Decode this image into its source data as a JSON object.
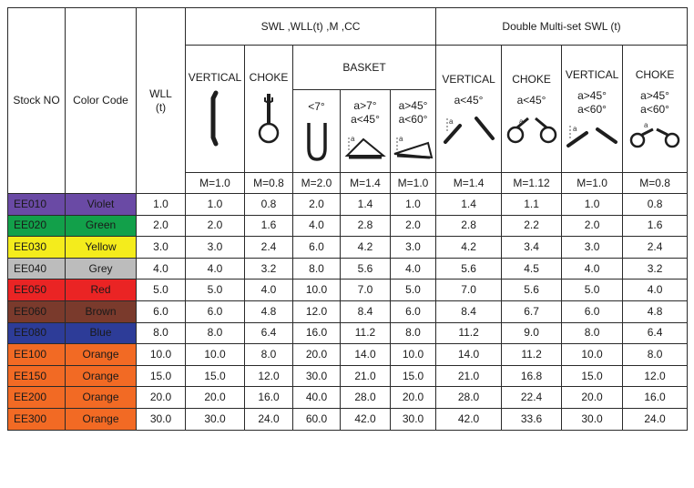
{
  "headers": {
    "stock_no": "Stock NO",
    "color_code": "Color Code",
    "wll": "WLL\n(t)",
    "swl_group": "SWL ,WLL(t) ,M ,CC",
    "double_group": "Double Multi-set SWL (t)",
    "basket": "BASKET",
    "vertical": "VERTICAL",
    "choke": "CHOKE",
    "angle_lt7": "<7°",
    "angle_7_45": "a>7°\na<45°",
    "angle_45_60": "a>45°\na<60°",
    "angle_lt45": "a<45°"
  },
  "m_factors": [
    "M=1.0",
    "M=0.8",
    "M=2.0",
    "M=1.4",
    "M=1.0",
    "M=1.4",
    "M=1.12",
    "M=1.0",
    "M=0.8"
  ],
  "rows": [
    {
      "stock": "EE010",
      "color": "Violet",
      "hex": "#6a4aa5",
      "text_color": "#1a1a1a",
      "values": [
        "1.0",
        "1.0",
        "0.8",
        "2.0",
        "1.4",
        "1.0",
        "1.4",
        "1.1",
        "1.0",
        "0.8"
      ]
    },
    {
      "stock": "EE020",
      "color": "Green",
      "hex": "#12a04a",
      "text_color": "#1a1a1a",
      "values": [
        "2.0",
        "2.0",
        "1.6",
        "4.0",
        "2.8",
        "2.0",
        "2.8",
        "2.2",
        "2.0",
        "1.6"
      ]
    },
    {
      "stock": "EE030",
      "color": "Yellow",
      "hex": "#f4ec1c",
      "text_color": "#1a1a1a",
      "values": [
        "3.0",
        "3.0",
        "2.4",
        "6.0",
        "4.2",
        "3.0",
        "4.2",
        "3.4",
        "3.0",
        "2.4"
      ]
    },
    {
      "stock": "EE040",
      "color": "Grey",
      "hex": "#bcbcbc",
      "text_color": "#1a1a1a",
      "values": [
        "4.0",
        "4.0",
        "3.2",
        "8.0",
        "5.6",
        "4.0",
        "5.6",
        "4.5",
        "4.0",
        "3.2"
      ]
    },
    {
      "stock": "EE050",
      "color": "Red",
      "hex": "#ea2424",
      "text_color": "#1a1a1a",
      "values": [
        "5.0",
        "5.0",
        "4.0",
        "10.0",
        "7.0",
        "5.0",
        "7.0",
        "5.6",
        "5.0",
        "4.0"
      ]
    },
    {
      "stock": "EE060",
      "color": "Brown",
      "hex": "#7a3a2c",
      "text_color": "#1a1a1a",
      "values": [
        "6.0",
        "6.0",
        "4.8",
        "12.0",
        "8.4",
        "6.0",
        "8.4",
        "6.7",
        "6.0",
        "4.8"
      ]
    },
    {
      "stock": "EE080",
      "color": "Blue",
      "hex": "#2d3c98",
      "text_color": "#1a1a1a",
      "values": [
        "8.0",
        "8.0",
        "6.4",
        "16.0",
        "11.2",
        "8.0",
        "11.2",
        "9.0",
        "8.0",
        "6.4"
      ]
    },
    {
      "stock": "EE100",
      "color": "Orange",
      "hex": "#f26a24",
      "text_color": "#1a1a1a",
      "values": [
        "10.0",
        "10.0",
        "8.0",
        "20.0",
        "14.0",
        "10.0",
        "14.0",
        "11.2",
        "10.0",
        "8.0"
      ]
    },
    {
      "stock": "EE150",
      "color": "Orange",
      "hex": "#f26a24",
      "text_color": "#1a1a1a",
      "values": [
        "15.0",
        "15.0",
        "12.0",
        "30.0",
        "21.0",
        "15.0",
        "21.0",
        "16.8",
        "15.0",
        "12.0"
      ]
    },
    {
      "stock": "EE200",
      "color": "Orange",
      "hex": "#f26a24",
      "text_color": "#1a1a1a",
      "values": [
        "20.0",
        "20.0",
        "16.0",
        "40.0",
        "28.0",
        "20.0",
        "28.0",
        "22.4",
        "20.0",
        "16.0"
      ]
    },
    {
      "stock": "EE300",
      "color": "Orange",
      "hex": "#f26a24",
      "text_color": "#1a1a1a",
      "values": [
        "30.0",
        "30.0",
        "24.0",
        "60.0",
        "42.0",
        "30.0",
        "42.0",
        "33.6",
        "30.0",
        "24.0"
      ]
    }
  ],
  "diagrams": [
    "vertical-sling-icon",
    "choke-hitch-icon",
    "basket-u-icon",
    "basket-angle-icon",
    "basket-wide-angle-icon",
    "double-vertical-icon",
    "double-choke-icon",
    "double-vertical-wide-icon",
    "double-choke-wide-icon"
  ],
  "colors": {
    "border": "#2a2a2a",
    "sling_fill": "#1e1e1e"
  }
}
